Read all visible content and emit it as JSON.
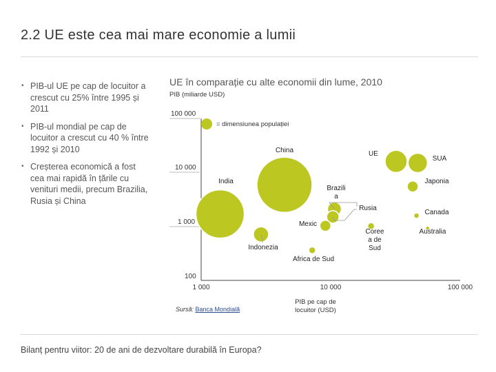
{
  "slide": {
    "title": "2.2 UE este cea mai mare economie a lumii",
    "bullets": [
      "PIB-ul UE pe cap de locuitor a crescut cu 25% între 1995 și 2011",
      "PIB-ul mondial pe cap de locuitor a crescut cu 40 % între 1992 și 2010",
      "Creșterea economică a fost cea mai rapidă în țările cu venituri medii, precum Brazilia, Rusia și China"
    ],
    "footer": "Bilanț pentru viitor: 20 de ani de dezvoltare durabilă în Europa?",
    "source_label": "Sursă:",
    "source_link": "Banca Mondială"
  },
  "chart_data": {
    "type": "scatter",
    "title": "UE în comparație cu alte economii din lume, 2010",
    "ylabel": "PIB (miliarde USD)",
    "xlabel": "PIB pe cap de locuitor (USD)",
    "xscale": "log",
    "yscale": "log",
    "xlim": [
      1000,
      100000
    ],
    "ylim": [
      100,
      100000
    ],
    "xticks": [
      "1 000",
      "10 000",
      "100 000"
    ],
    "yticks": [
      "100",
      "1 000",
      "10 000",
      "100 000"
    ],
    "size_legend": "= dimensiunea populației",
    "points": [
      {
        "label": "China",
        "x": 4400,
        "y": 5900
      },
      {
        "label": "India",
        "x": 1400,
        "y": 1700
      },
      {
        "label": "UE",
        "x": 32000,
        "y": 16000
      },
      {
        "label": "SUA",
        "x": 47000,
        "y": 15000
      },
      {
        "label": "Japonia",
        "x": 43000,
        "y": 5500
      },
      {
        "label": "Brazilia",
        "x": 10700,
        "y": 2100
      },
      {
        "label": "Rusia",
        "x": 10400,
        "y": 1500
      },
      {
        "label": "Mexic",
        "x": 9100,
        "y": 1030
      },
      {
        "label": "Indonezia",
        "x": 2900,
        "y": 710
      },
      {
        "label": "Canada",
        "x": 46000,
        "y": 1580
      },
      {
        "label": "Coreea de Sud",
        "x": 20500,
        "y": 1010
      },
      {
        "label": "Australia",
        "x": 56000,
        "y": 930
      },
      {
        "label": "Africa de Sud",
        "x": 7200,
        "y": 360
      }
    ]
  }
}
